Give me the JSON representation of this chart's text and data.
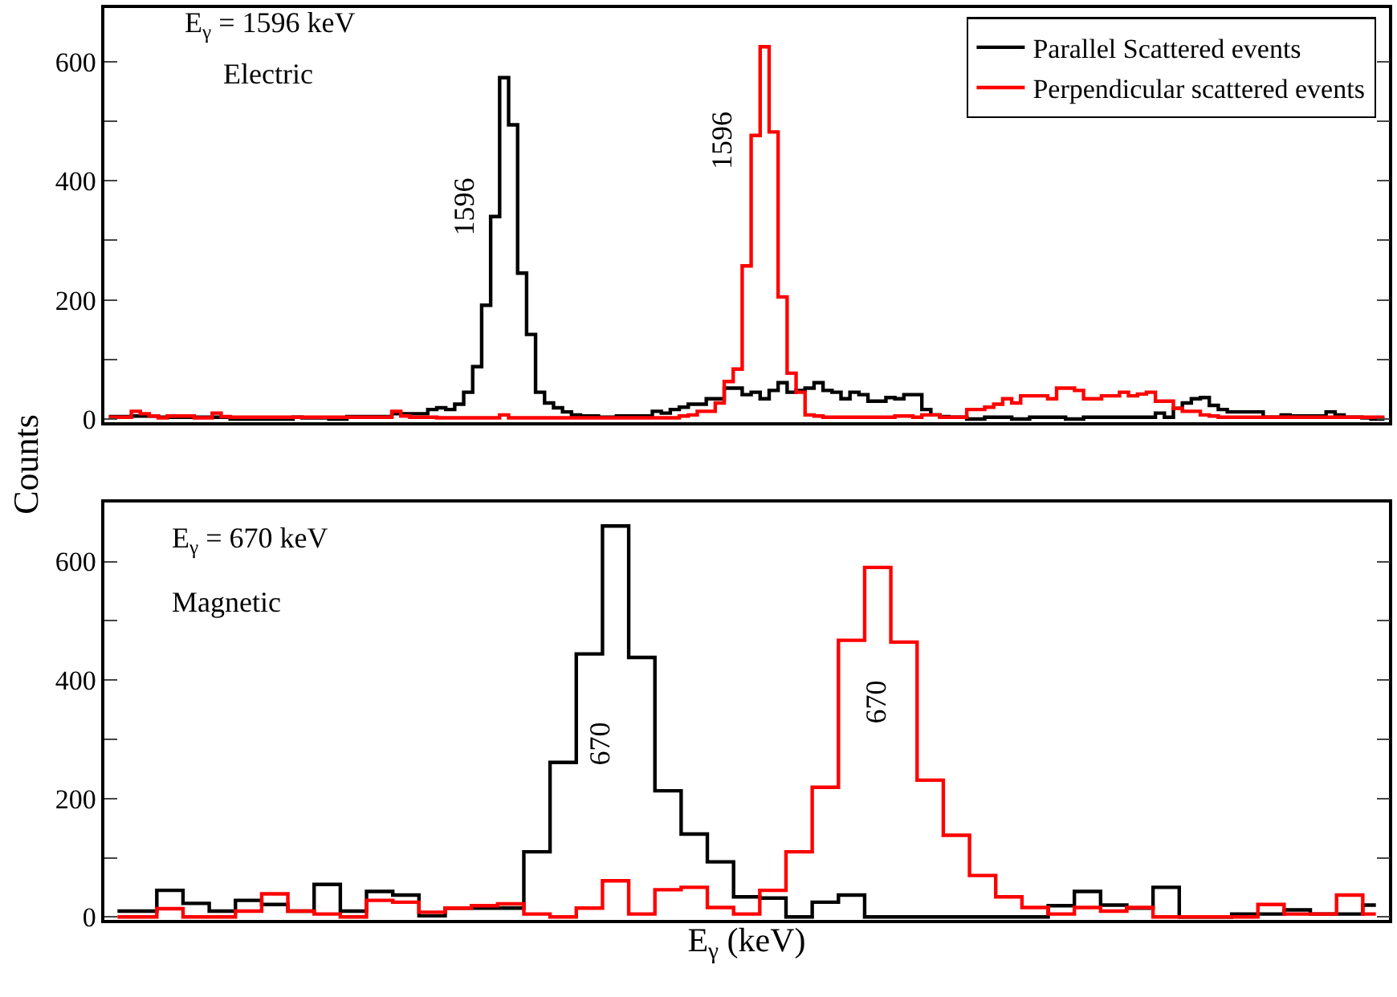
{
  "chart_data": [
    {
      "type": "step",
      "categories": [
        null,
        null,
        null,
        null,
        null,
        null,
        null,
        null,
        null,
        null,
        null,
        null,
        null,
        null,
        null,
        null,
        null,
        null,
        null,
        null,
        null,
        null,
        null,
        null,
        null,
        null,
        null,
        null,
        null,
        null,
        null,
        null,
        null,
        null,
        null,
        null,
        null,
        null,
        null,
        null,
        null,
        null,
        null,
        null,
        null,
        null,
        null,
        null,
        null,
        null,
        null,
        null,
        null,
        null,
        null,
        null,
        null,
        null,
        null,
        null,
        null,
        null,
        null,
        null,
        null,
        null,
        null,
        null,
        null,
        null,
        null,
        null,
        null,
        null,
        null,
        null,
        null,
        null,
        null,
        null,
        null,
        null,
        null,
        null,
        null,
        null,
        null,
        null,
        null,
        null,
        null,
        null,
        null,
        null,
        null,
        null,
        null,
        null,
        null,
        null,
        null,
        null,
        null,
        null,
        null,
        null,
        null,
        null,
        null,
        null,
        null,
        null,
        null,
        null,
        null,
        null,
        null,
        null,
        null,
        null,
        null,
        null,
        null,
        null,
        null,
        null,
        null,
        null,
        null,
        null,
        null,
        null,
        null,
        null,
        null,
        null,
        null,
        null,
        null,
        null,
        null,
        null,
        null
      ],
      "ylabel": "Counts",
      "series": [
        {
          "name": "Parallel Scattered events",
          "color": "#000000",
          "values": [
            4,
            4,
            4,
            5,
            5,
            5,
            3,
            3,
            3,
            3,
            3,
            3,
            3,
            3,
            0,
            0,
            0,
            0,
            0,
            0,
            0,
            3,
            2,
            2,
            2,
            0,
            0,
            4,
            4,
            4,
            4,
            4,
            9,
            9,
            9,
            9,
            16,
            19,
            16,
            25,
            45,
            88,
            191,
            340,
            573,
            494,
            245,
            142,
            45,
            27,
            19,
            12,
            7,
            5,
            5,
            3,
            3,
            5,
            5,
            5,
            5,
            13,
            10,
            16,
            20,
            25,
            25,
            34,
            34,
            52,
            52,
            41,
            45,
            34,
            48,
            61,
            45,
            48,
            52,
            61,
            48,
            45,
            34,
            45,
            41,
            30,
            30,
            36,
            34,
            41,
            41,
            16,
            7,
            4,
            3,
            3,
            0,
            0,
            3,
            3,
            3,
            0,
            0,
            3,
            3,
            3,
            3,
            0,
            0,
            3,
            3,
            3,
            3,
            3,
            3,
            3,
            3,
            10,
            3,
            18,
            27,
            34,
            36,
            23,
            16,
            12,
            12,
            12,
            12,
            3,
            3,
            7,
            5,
            5,
            5,
            5,
            12,
            7,
            3,
            3,
            2,
            0,
            0
          ]
        },
        {
          "name": "Perpendicular scattered events",
          "color": "#ff0000",
          "values": [
            3,
            3,
            3,
            13,
            9,
            5,
            2,
            5,
            5,
            5,
            2,
            2,
            10,
            4,
            3,
            3,
            3,
            3,
            3,
            3,
            3,
            3,
            3,
            3,
            3,
            3,
            3,
            3,
            3,
            3,
            3,
            3,
            13,
            5,
            3,
            3,
            3,
            2,
            2,
            2,
            2,
            2,
            2,
            2,
            7,
            2,
            2,
            2,
            2,
            2,
            2,
            2,
            2,
            2,
            2,
            2,
            2,
            2,
            2,
            2,
            2,
            2,
            2,
            2,
            5,
            7,
            13,
            13,
            27,
            63,
            84,
            257,
            476,
            625,
            482,
            205,
            77,
            45,
            7,
            5,
            3,
            3,
            3,
            3,
            3,
            3,
            3,
            3,
            5,
            5,
            3,
            7,
            7,
            3,
            3,
            3,
            16,
            16,
            20,
            25,
            34,
            27,
            39,
            39,
            39,
            34,
            52,
            52,
            48,
            34,
            34,
            39,
            39,
            45,
            39,
            42,
            45,
            30,
            30,
            18,
            13,
            13,
            7,
            5,
            3,
            3,
            3,
            3,
            3,
            3,
            3,
            3,
            3,
            3,
            3,
            3,
            3,
            3,
            3,
            3,
            3,
            3,
            3
          ]
        }
      ],
      "ylim": [
        -5,
        690
      ],
      "yticks": [
        0,
        {
          "value": 100,
          "label": null
        },
        200,
        {
          "value": 300,
          "label": null
        },
        400,
        {
          "value": 500,
          "label": null
        },
        600
      ],
      "tick_labels": "y",
      "legend": "top right",
      "annotations": [
        "E$_{γ}$ = 1596 keV",
        "Electric",
        "1596",
        "1596"
      ]
    },
    {
      "type": "step",
      "categories": [
        null,
        null,
        null,
        null,
        null,
        null,
        null,
        null,
        null,
        null,
        null,
        null,
        null,
        null,
        null,
        null,
        null,
        null,
        null,
        null,
        null,
        null,
        null,
        null,
        null,
        null,
        null,
        null,
        null,
        null,
        null,
        null,
        null,
        null,
        null,
        null,
        null,
        null,
        null,
        null,
        null,
        null,
        null,
        null,
        null,
        null,
        null,
        null,
        null
      ],
      "xlabel": "E$_{γ}$ (keV)",
      "series": [
        {
          "color": "#000000",
          "values": [
            10,
            10,
            45,
            23,
            10,
            28,
            21,
            10,
            55,
            10,
            43,
            37,
            2,
            15,
            15,
            15,
            110,
            261,
            444,
            660,
            438,
            213,
            140,
            93,
            34,
            32,
            0,
            25,
            37,
            0,
            0,
            0,
            0,
            0,
            0,
            0,
            19,
            43,
            20,
            15,
            50,
            0,
            0,
            5,
            5,
            12,
            5,
            5,
            20
          ]
        },
        {
          "color": "#ff0000",
          "values": [
            0,
            0,
            14,
            0,
            0,
            10,
            39,
            10,
            5,
            0,
            28,
            25,
            8,
            15,
            19,
            22,
            5,
            0,
            15,
            61,
            5,
            46,
            50,
            16,
            5,
            45,
            110,
            219,
            467,
            590,
            464,
            231,
            138,
            70,
            34,
            16,
            5,
            16,
            10,
            16,
            0,
            0,
            0,
            0,
            21,
            5,
            5,
            37,
            5
          ]
        }
      ],
      "ylim": [
        -5,
        700
      ],
      "yticks": [
        0,
        {
          "value": 100,
          "label": null
        },
        200,
        {
          "value": 300,
          "label": null
        },
        400,
        {
          "value": 500,
          "label": null
        },
        600
      ],
      "tick_labels": "y",
      "annotations": [
        "E$_{γ}$ = 670 keV",
        "Magnetic",
        "670",
        "670"
      ]
    }
  ]
}
